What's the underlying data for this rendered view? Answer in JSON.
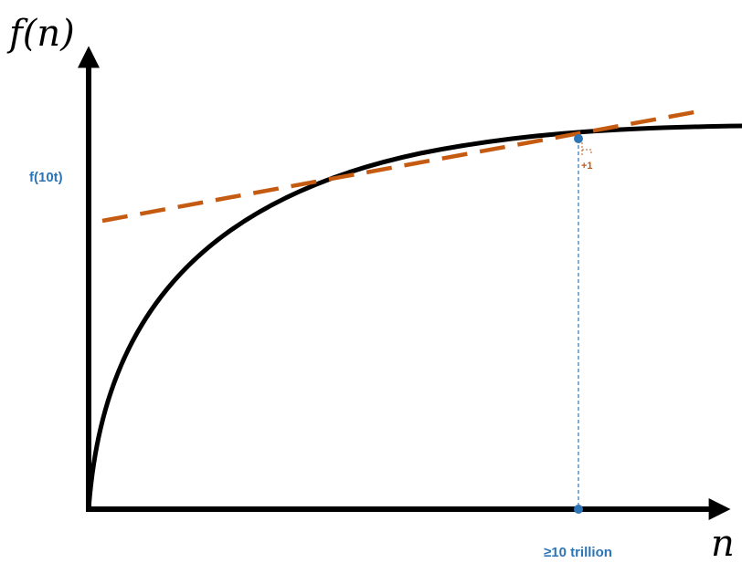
{
  "y_axis": {
    "label": "f(n)"
  },
  "x_axis": {
    "label": "n"
  },
  "annotations": {
    "y_value_label": "f(10t)",
    "x_value_label": "≥10 trillion",
    "increment_label": "+1"
  },
  "colors": {
    "curve": "#000000",
    "tangent": "#c55a11",
    "highlight": "#2e75b6"
  },
  "curve_shape": "concave increasing (logarithmic-like)",
  "tangent_style": "dashed"
}
